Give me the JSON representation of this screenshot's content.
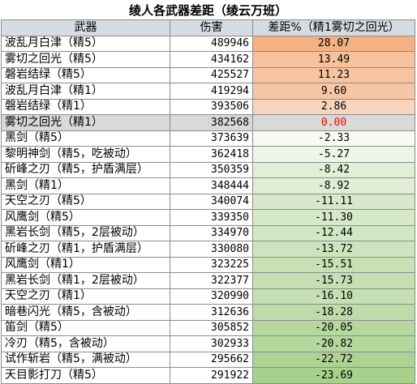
{
  "title": "绫人各武器差距（绫云万班）",
  "headers": [
    "武器",
    "伤害",
    "差距%（精1雾切之回光）"
  ],
  "colors": {
    "positive_max": "#f4b183",
    "positive_min": "#fbe5d6",
    "negative_min": "#ffffff",
    "negative_max": "#a9d18e",
    "baseline_row": "#d9d9d9",
    "baseline_text": "#ff0000"
  },
  "rows": [
    {
      "weapon": "波乱月白津（精5）",
      "damage": "489946",
      "diff": "28.07"
    },
    {
      "weapon": "雾切之回光（精5）",
      "damage": "434162",
      "diff": "13.49"
    },
    {
      "weapon": "磐岩结绿（精5）",
      "damage": "425527",
      "diff": "11.23"
    },
    {
      "weapon": "波乱月白津（精1）",
      "damage": "419294",
      "diff": "9.60"
    },
    {
      "weapon": "磐岩结绿（精1）",
      "damage": "393506",
      "diff": "2.86"
    },
    {
      "weapon": "雾切之回光（精1）",
      "damage": "382568",
      "diff": "0.00",
      "baseline": true
    },
    {
      "weapon": "黑剑（精5）",
      "damage": "373639",
      "diff": "-2.33"
    },
    {
      "weapon": "黎明神剑（精5，吃被动）",
      "damage": "362418",
      "diff": "-5.27"
    },
    {
      "weapon": "斫峰之刃（精5，护盾满层）",
      "damage": "350359",
      "diff": "-8.42"
    },
    {
      "weapon": "黑剑（精1）",
      "damage": "348444",
      "diff": "-8.92"
    },
    {
      "weapon": "天空之刃（精5）",
      "damage": "340074",
      "diff": "-11.11"
    },
    {
      "weapon": "风鹰剑（精5）",
      "damage": "339350",
      "diff": "-11.30"
    },
    {
      "weapon": "黑岩长剑（精5，2层被动）",
      "damage": "334970",
      "diff": "-12.44"
    },
    {
      "weapon": "斫峰之刃（精1，护盾满层）",
      "damage": "330080",
      "diff": "-13.72"
    },
    {
      "weapon": "风鹰剑（精1）",
      "damage": "323225",
      "diff": "-15.51"
    },
    {
      "weapon": "黑岩长剑（精1，2层被动）",
      "damage": "322377",
      "diff": "-15.73"
    },
    {
      "weapon": "天空之刃（精1）",
      "damage": "320990",
      "diff": "-16.10"
    },
    {
      "weapon": "暗巷闪光（精5，含被动）",
      "damage": "312636",
      "diff": "-18.28"
    },
    {
      "weapon": "笛剑（精5）",
      "damage": "305852",
      "diff": "-20.05"
    },
    {
      "weapon": "冷刃（精5，含被动）",
      "damage": "302933",
      "diff": "-20.82"
    },
    {
      "weapon": "试作斩岩（精5，满被动）",
      "damage": "295662",
      "diff": "-22.72"
    },
    {
      "weapon": "天目影打刀（精5）",
      "damage": "291922",
      "diff": "-23.69"
    }
  ]
}
